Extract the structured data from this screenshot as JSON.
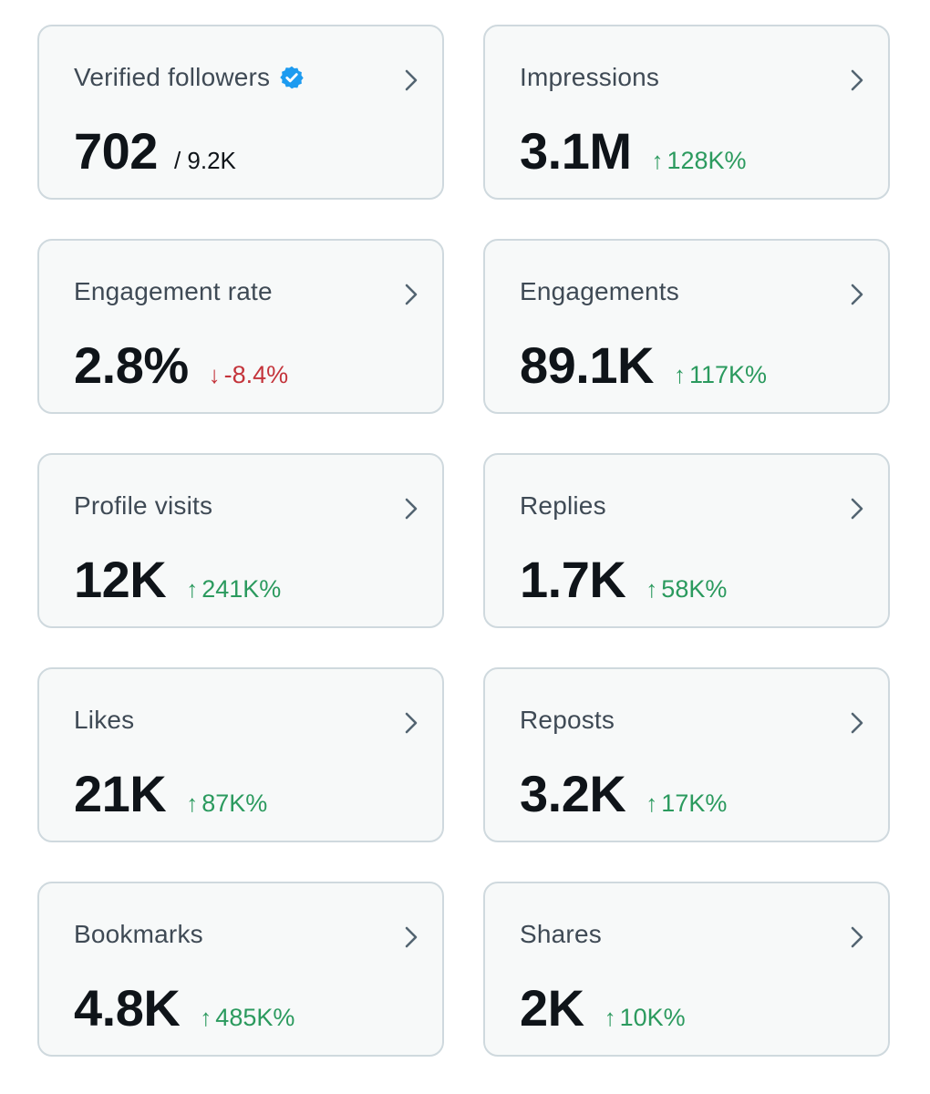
{
  "cards": [
    {
      "title": "Verified followers",
      "value": "702",
      "secondary": "/ 9.2K",
      "verified_icon": "verified-badge-icon"
    },
    {
      "title": "Impressions",
      "value": "3.1M",
      "change": {
        "arrow": "↑",
        "text": "128K%",
        "direction": "up"
      }
    },
    {
      "title": "Engagement rate",
      "value": "2.8%",
      "change": {
        "arrow": "↓",
        "text": "-8.4%",
        "direction": "down"
      }
    },
    {
      "title": "Engagements",
      "value": "89.1K",
      "change": {
        "arrow": "↑",
        "text": "117K%",
        "direction": "up"
      }
    },
    {
      "title": "Profile visits",
      "value": "12K",
      "change": {
        "arrow": "↑",
        "text": "241K%",
        "direction": "up"
      }
    },
    {
      "title": "Replies",
      "value": "1.7K",
      "change": {
        "arrow": "↑",
        "text": "58K%",
        "direction": "up"
      }
    },
    {
      "title": "Likes",
      "value": "21K",
      "change": {
        "arrow": "↑",
        "text": "87K%",
        "direction": "up"
      }
    },
    {
      "title": "Reposts",
      "value": "3.2K",
      "change": {
        "arrow": "↑",
        "text": "17K%",
        "direction": "up"
      }
    },
    {
      "title": "Bookmarks",
      "value": "4.8K",
      "change": {
        "arrow": "↑",
        "text": "485K%",
        "direction": "up"
      }
    },
    {
      "title": "Shares",
      "value": "2K",
      "change": {
        "arrow": "↑",
        "text": "10K%",
        "direction": "up"
      }
    }
  ],
  "colors": {
    "card_background": "#f7f9f9",
    "card_border": "#cfd9de",
    "up": "#2b9a5e",
    "down": "#c4343b",
    "verified": "#1d9bf0"
  }
}
